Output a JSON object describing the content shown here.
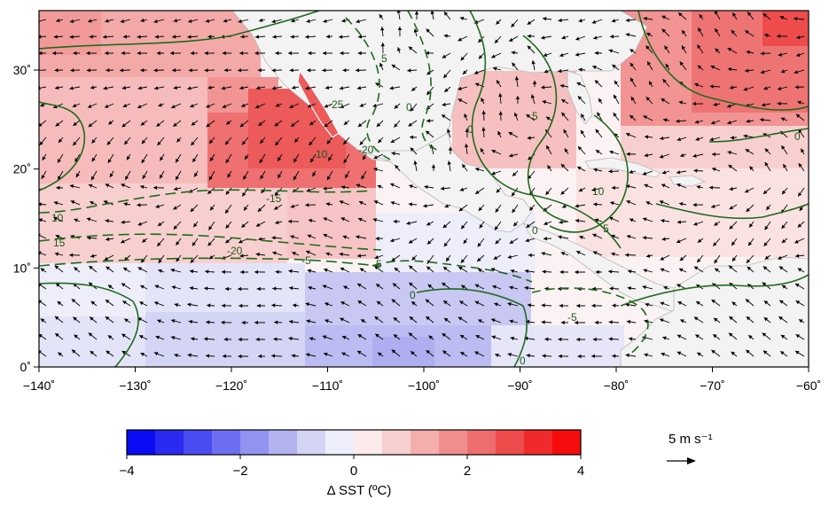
{
  "map": {
    "x_tick_labels": [
      "−140˚",
      "−130˚",
      "−120˚",
      "−110˚",
      "−100˚",
      "−90˚",
      "−80˚",
      "−70˚",
      "−60˚"
    ],
    "y_tick_labels": [
      "0˚",
      "10˚",
      "20˚",
      "30˚"
    ],
    "lon_range": [
      -140,
      -60
    ],
    "lat_range": [
      0,
      36
    ],
    "contour_levels_shown": [
      "10",
      "15",
      "-15",
      "-20",
      "10",
      "-5",
      "5",
      "0",
      "-25",
      "-20",
      "5",
      "-5",
      "0",
      "5",
      "10",
      "-5",
      "0",
      "0",
      "0",
      "0"
    ]
  },
  "colorbar": {
    "title": "Δ SST (ºC)",
    "tick_labels": [
      "−4",
      "−2",
      "0",
      "2",
      "4"
    ],
    "range": [
      -4,
      4
    ],
    "colors": [
      "#0c0cf4",
      "#2a2af2",
      "#4b4bf2",
      "#6e6ef2",
      "#9292f0",
      "#b3b3f0",
      "#d4d4f4",
      "#eeeefa",
      "#fdeaea",
      "#f8cfcf",
      "#f4aeae",
      "#f08e8e",
      "#ee6d6d",
      "#ee4c4c",
      "#f02a2a",
      "#f60c0c"
    ]
  },
  "reference_vector": {
    "label": "5 m s⁻¹"
  },
  "colors": {
    "contour": "#1e6b1c",
    "land": "#f3f3f3",
    "arrow": "#000000"
  }
}
